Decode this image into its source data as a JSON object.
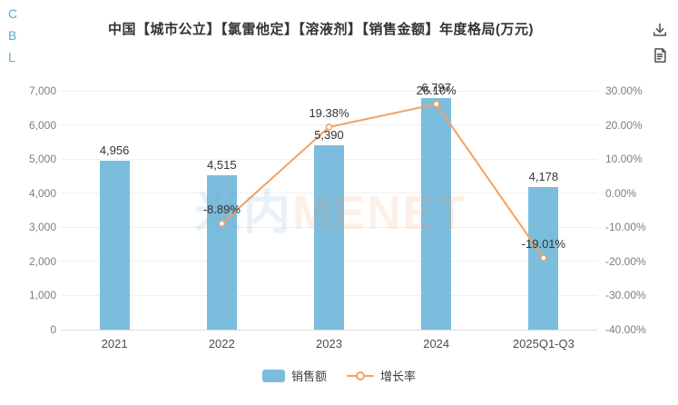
{
  "page": {
    "sidebar_letters": [
      "C",
      "B",
      "L"
    ]
  },
  "header": {
    "title": "中国【城市公立】【氯雷他定】【溶液剂】【销售金额】年度格局(万元)",
    "icons": [
      {
        "name": "download-icon"
      },
      {
        "name": "report-icon"
      }
    ]
  },
  "watermark": {
    "cn": "米内",
    "en": "MENET"
  },
  "colors": {
    "bar": "#7cbddd",
    "line": "#f2a261",
    "accent_letters": "#58a8d4",
    "grid": "#f0f0f0",
    "axis_line": "#dcdcdc"
  },
  "chart_data": {
    "type": "bar",
    "title": "中国【城市公立】【氯雷他定】【溶液剂】【销售金额】年度格局(万元)",
    "categories": [
      "2021",
      "2022",
      "2023",
      "2024",
      "2025Q1-Q3"
    ],
    "series": [
      {
        "name": "销售额",
        "type": "bar",
        "axis": "left",
        "color": "#7cbddd",
        "values": [
          4956,
          4515,
          5390,
          6797,
          4178
        ],
        "labels": [
          "4,956",
          "4,515",
          "5,390",
          "6,797",
          "4,178"
        ]
      },
      {
        "name": "增长率",
        "type": "line",
        "axis": "right",
        "color": "#f2a261",
        "values": [
          null,
          -8.89,
          19.38,
          26.1,
          -19.01
        ],
        "labels": [
          null,
          "-8.89%",
          "19.38%",
          "26.10%",
          "-19.01%"
        ]
      }
    ],
    "left_axis": {
      "label": "万元",
      "min": 0,
      "max": 7000,
      "step": 1000,
      "ticks": [
        "7,000",
        "6,000",
        "5,000",
        "4,000",
        "3,000",
        "2,000",
        "1,000",
        "0"
      ]
    },
    "right_axis": {
      "label": "%",
      "min": -40,
      "max": 30,
      "step": 10,
      "ticks": [
        "30.00%",
        "20.00%",
        "10.00%",
        "0.00%",
        "-10.00%",
        "-20.00%",
        "-30.00%",
        "-40.00%"
      ]
    },
    "grid": true,
    "legend": [
      "销售额",
      "增长率"
    ],
    "legend_position": "bottom"
  }
}
